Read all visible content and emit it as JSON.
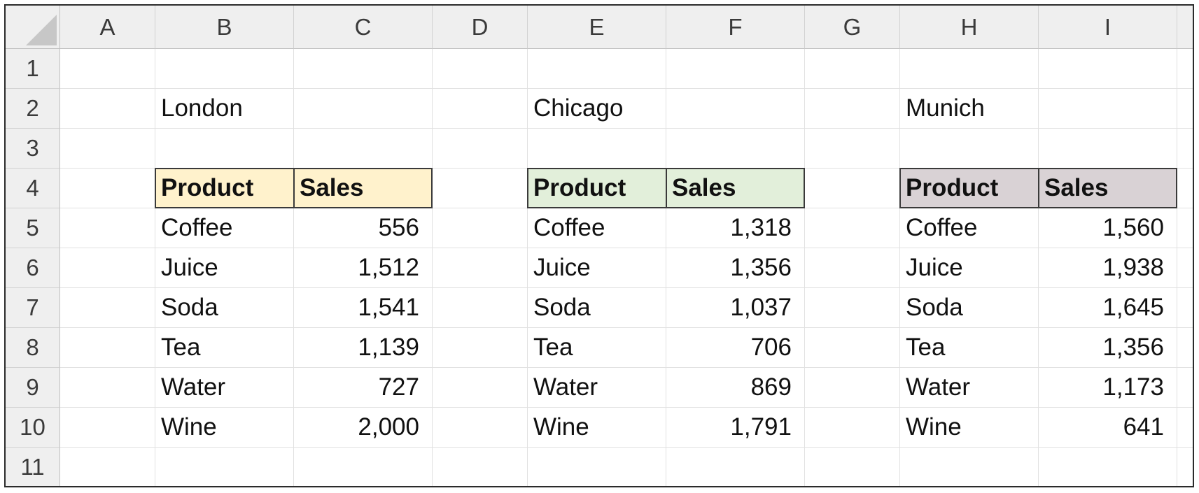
{
  "columns": [
    "A",
    "B",
    "C",
    "D",
    "E",
    "F",
    "G",
    "H",
    "I"
  ],
  "rows": [
    "1",
    "2",
    "3",
    "4",
    "5",
    "6",
    "7",
    "8",
    "9",
    "10",
    "11"
  ],
  "cells": {
    "B2": "London",
    "E2": "Chicago",
    "H2": "Munich",
    "B4": "Product",
    "C4": "Sales",
    "E4": "Product",
    "F4": "Sales",
    "H4": "Product",
    "I4": "Sales",
    "B5": "Coffee",
    "C5": "556",
    "B6": "Juice",
    "C6": "1,512",
    "B7": "Soda",
    "C7": "1,541",
    "B8": "Tea",
    "C8": "1,139",
    "B9": "Water",
    "C9": "727",
    "B10": "Wine",
    "C10": "2,000",
    "E5": "Coffee",
    "F5": "1,318",
    "E6": "Juice",
    "F6": "1,356",
    "E7": "Soda",
    "F7": "1,037",
    "E8": "Tea",
    "F8": "706",
    "E9": "Water",
    "F9": "869",
    "E10": "Wine",
    "F10": "1,791",
    "H5": "Coffee",
    "I5": "1,560",
    "H6": "Juice",
    "I6": "1,938",
    "H7": "Soda",
    "I7": "1,645",
    "H8": "Tea",
    "I8": "1,356",
    "H9": "Water",
    "I9": "1,173",
    "H10": "Wine",
    "I10": "641"
  },
  "numeric_columns": [
    "C",
    "F",
    "I"
  ],
  "header_fills": {
    "london": "#fff2cc",
    "chicago": "#e2efda",
    "munich": "#d9d2d5"
  },
  "tables": [
    {
      "name": "london",
      "columns": [
        "B",
        "C"
      ],
      "header_row": "4"
    },
    {
      "name": "chicago",
      "columns": [
        "E",
        "F"
      ],
      "header_row": "4"
    },
    {
      "name": "munich",
      "columns": [
        "H",
        "I"
      ],
      "header_row": "4"
    }
  ]
}
